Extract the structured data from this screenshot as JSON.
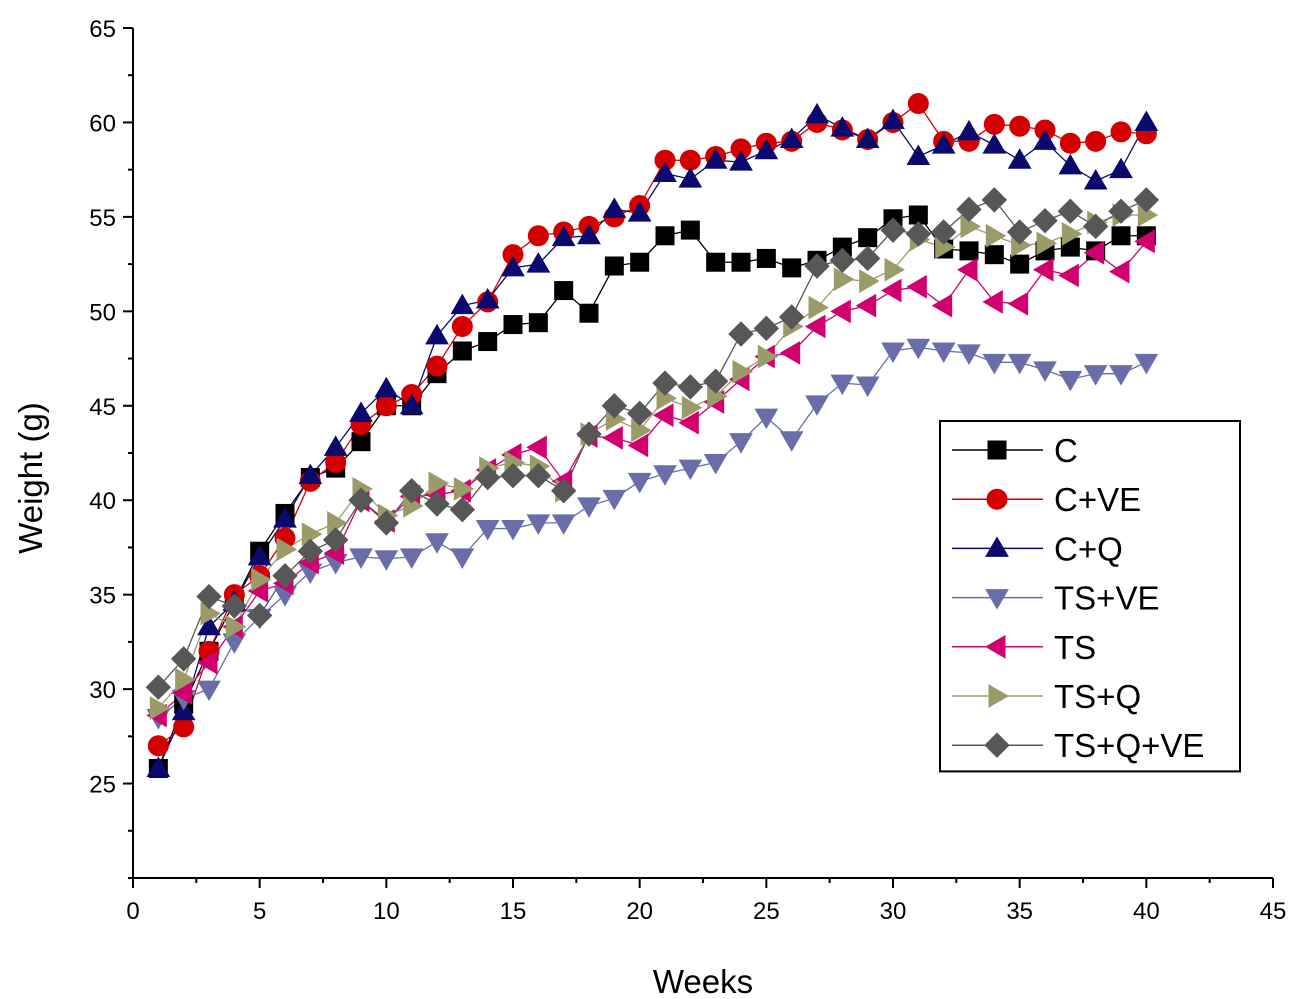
{
  "chart_data": {
    "type": "line",
    "title": "",
    "xlabel": "Weeks",
    "ylabel": "Weight (g)",
    "xlim": [
      0,
      45
    ],
    "ylim": [
      20,
      65
    ],
    "x_ticks": [
      0,
      5,
      10,
      15,
      20,
      25,
      30,
      35,
      40,
      45
    ],
    "y_ticks": [
      25,
      30,
      35,
      40,
      45,
      50,
      55,
      60,
      65
    ],
    "grid": false,
    "legend_position": "right",
    "x": [
      1,
      2,
      3,
      4,
      5,
      6,
      7,
      8,
      9,
      10,
      11,
      12,
      13,
      14,
      15,
      16,
      17,
      18,
      19,
      20,
      21,
      22,
      23,
      24,
      25,
      26,
      27,
      28,
      29,
      30,
      31,
      32,
      33,
      34,
      35,
      36,
      37,
      38,
      39,
      40
    ],
    "series": [
      {
        "name": "C",
        "color": "#000000",
        "marker": "square",
        "values": [
          25.8,
          29.2,
          32.0,
          34.6,
          37.3,
          39.3,
          41.2,
          41.7,
          43.1,
          45.0,
          45.0,
          46.7,
          47.9,
          48.4,
          49.3,
          49.4,
          51.1,
          49.9,
          52.4,
          52.6,
          54.0,
          54.3,
          52.6,
          52.6,
          52.8,
          52.3,
          52.7,
          53.4,
          53.9,
          54.9,
          55.1,
          53.3,
          53.2,
          53.0,
          52.5,
          53.2,
          53.4,
          53.2,
          54.0,
          54.0
        ]
      },
      {
        "name": "C+VE",
        "color": "#d40000",
        "marker": "circle",
        "values": [
          27.0,
          28.0,
          32.0,
          35.0,
          36.0,
          38.0,
          41.0,
          42.0,
          44.0,
          45.0,
          45.6,
          47.1,
          49.2,
          50.5,
          53.0,
          54.0,
          54.2,
          54.5,
          55.0,
          55.6,
          58.0,
          58.0,
          58.2,
          58.6,
          58.9,
          59.0,
          60.0,
          59.6,
          59.1,
          60.0,
          61.0,
          59.0,
          59.0,
          59.9,
          59.8,
          59.6,
          58.9,
          59.0,
          59.5,
          59.4
        ]
      },
      {
        "name": "C+Q",
        "color": "#0a0a6e",
        "marker": "triangle-up",
        "values": [
          25.8,
          28.8,
          33.3,
          34.6,
          37.0,
          39.0,
          41.3,
          42.8,
          44.6,
          45.9,
          45.0,
          48.7,
          50.3,
          50.6,
          52.3,
          52.5,
          53.9,
          54.0,
          55.4,
          55.2,
          57.3,
          57.0,
          58.0,
          57.9,
          58.5,
          59.1,
          60.4,
          59.7,
          59.1,
          60.1,
          58.2,
          58.8,
          59.5,
          58.8,
          58.0,
          59.0,
          57.7,
          56.9,
          57.5,
          60.0
        ]
      },
      {
        "name": "TS+VE",
        "color": "#6a6ea8",
        "marker": "triangle-down",
        "values": [
          28.5,
          29.5,
          30.0,
          32.5,
          33.8,
          35.0,
          36.2,
          36.7,
          37.0,
          36.9,
          37.0,
          37.8,
          37.0,
          38.5,
          38.5,
          38.8,
          38.8,
          39.7,
          40.1,
          41.0,
          41.4,
          41.7,
          42.0,
          43.1,
          44.4,
          43.2,
          45.1,
          46.2,
          46.1,
          47.9,
          48.1,
          47.9,
          47.8,
          47.3,
          47.3,
          46.9,
          46.4,
          46.7,
          46.7,
          47.3
        ]
      },
      {
        "name": "TS",
        "color": "#d0006f",
        "marker": "triangle-left",
        "values": [
          28.6,
          29.8,
          31.4,
          33.3,
          35.2,
          35.6,
          36.7,
          37.2,
          40.0,
          38.9,
          40.2,
          40.3,
          40.5,
          41.6,
          42.4,
          42.8,
          41.0,
          43.4,
          43.3,
          42.9,
          44.5,
          44.1,
          45.2,
          46.4,
          47.6,
          47.8,
          49.2,
          50.0,
          50.3,
          51.1,
          51.3,
          50.3,
          52.2,
          50.5,
          50.4,
          52.2,
          51.9,
          53.1,
          52.1,
          53.7
        ]
      },
      {
        "name": "TS+Q",
        "color": "#9b9b6a",
        "marker": "triangle-right",
        "values": [
          29.0,
          30.5,
          34.0,
          33.3,
          35.8,
          37.4,
          38.2,
          38.8,
          40.6,
          39.2,
          39.7,
          40.9,
          40.6,
          41.7,
          42.0,
          41.8,
          40.5,
          43.5,
          44.3,
          43.7,
          45.4,
          44.9,
          45.5,
          46.8,
          47.6,
          49.2,
          50.2,
          51.7,
          51.6,
          52.2,
          53.8,
          53.4,
          54.5,
          54.0,
          53.5,
          53.6,
          54.1,
          54.7,
          55.1,
          55.1
        ]
      },
      {
        "name": "TS+Q+VE",
        "color": "#575757",
        "marker": "diamond",
        "values": [
          30.1,
          31.6,
          34.9,
          34.4,
          33.9,
          36.0,
          37.3,
          37.9,
          40.0,
          38.8,
          40.5,
          39.8,
          39.5,
          41.2,
          41.3,
          41.3,
          40.5,
          43.5,
          45.0,
          44.6,
          46.2,
          46.0,
          46.3,
          48.8,
          49.1,
          49.7,
          52.4,
          52.7,
          52.8,
          54.3,
          54.1,
          54.2,
          55.4,
          55.9,
          54.2,
          54.8,
          55.3,
          54.5,
          55.3,
          55.9
        ]
      }
    ]
  }
}
